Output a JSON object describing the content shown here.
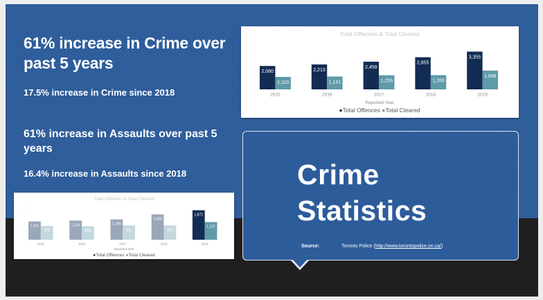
{
  "headline_crime": "61% increase in Crime over past 5 years",
  "sub_crime": "17.5% increase in Crime since 2018",
  "headline_assaults": "61% increase in Assaults over past 5 years",
  "sub_assaults": "16.4% increase in Assaults since 2018",
  "callout": {
    "title_line1": "Crime",
    "title_line2": "Statistics",
    "source_label": "Source:",
    "source_prefix": "Toronto Police (",
    "source_link": "http://www.torontopolice.on.ca/",
    "source_suffix": ")"
  },
  "colors": {
    "background": "#2d5c9a",
    "dark_band": "#1f1f1f",
    "offences_series": "#132c53",
    "cleared_series": "#5e9aa8"
  },
  "chart_data": [
    {
      "type": "bar",
      "title": "Total Offences & Total Cleared",
      "xlabel": "Reported Year",
      "categories": [
        "2015",
        "2016",
        "2017",
        "2018",
        "2019"
      ],
      "series": [
        {
          "name": "Total Offences",
          "values": [
            2080,
            2213,
            2459,
            2855,
            3355
          ],
          "labels": [
            "2,080",
            "2,213",
            "2,459",
            "2,855",
            "3,355"
          ]
        },
        {
          "name": "Total Cleared",
          "values": [
            1110,
            1141,
            1255,
            1265,
            1668
          ],
          "labels": [
            "1,110",
            "1,141",
            "1,255",
            "1,265",
            "1,668"
          ]
        }
      ],
      "ylim": [
        0,
        4000
      ],
      "legend": "bottom",
      "legend_marker": "●"
    },
    {
      "type": "bar",
      "title": "Total Offences & Total Cleared",
      "xlabel": "Reported Year",
      "categories": [
        "2015",
        "2016",
        "2017",
        "2018",
        "2019"
      ],
      "series": [
        {
          "name": "Total Offences",
          "values": [
            1161,
            1216,
            1290,
            1609,
            1872
          ],
          "labels": [
            "1,161",
            "1,216",
            "1,290",
            "1,609",
            "1,872"
          ]
        },
        {
          "name": "Total Cleared",
          "values": [
            871,
            856,
            911,
            910,
            1122
          ],
          "labels": [
            "871",
            "856",
            "911",
            "910",
            "1,122"
          ]
        }
      ],
      "ylim": [
        0,
        2200
      ],
      "legend": "bottom",
      "legend_marker": "●",
      "highlight_category": "2019"
    }
  ]
}
